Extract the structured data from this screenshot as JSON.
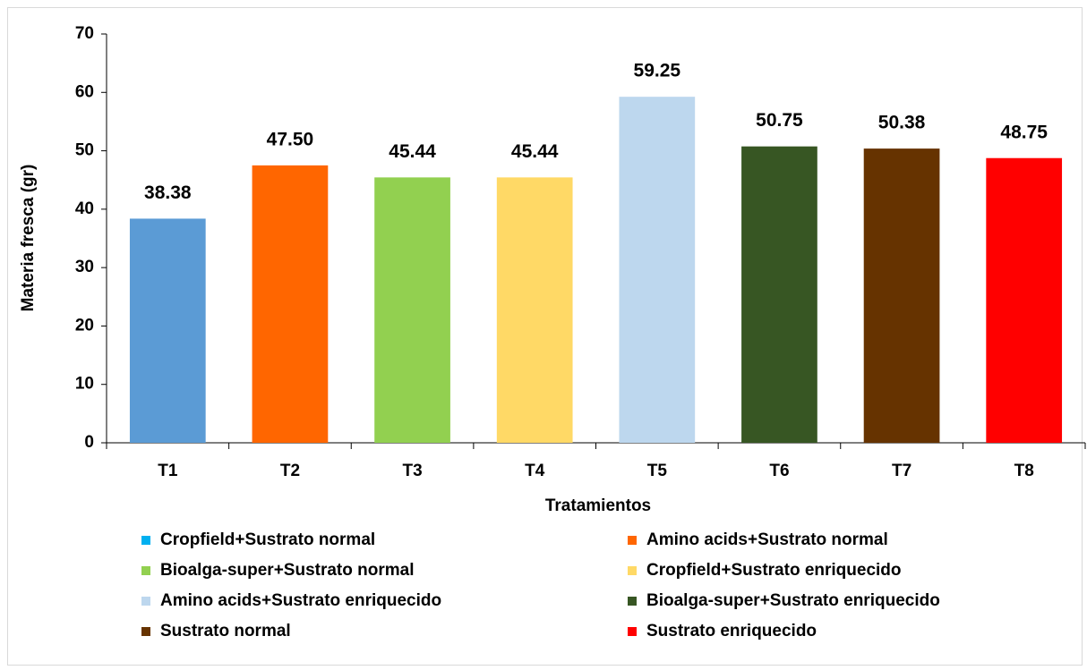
{
  "chart_data": {
    "type": "bar",
    "x_label": "Tratamientos",
    "y_label": "Materia fresca (gr)",
    "categories": [
      "T1",
      "T2",
      "T3",
      "T4",
      "T5",
      "T6",
      "T7",
      "T8"
    ],
    "values": [
      38.38,
      47.5,
      45.44,
      45.44,
      59.25,
      50.75,
      50.38,
      48.75
    ],
    "value_labels": [
      "38.38",
      "47.50",
      "45.44",
      "45.44",
      "59.25",
      "50.75",
      "50.38",
      "48.75"
    ],
    "colors": [
      "#5b9bd5",
      "#ff6600",
      "#92d050",
      "#ffd966",
      "#bdd7ee",
      "#375623",
      "#663300",
      "#ff0000"
    ],
    "ylim": [
      0,
      70
    ],
    "yticks": [
      0,
      10,
      20,
      30,
      40,
      50,
      60,
      70
    ],
    "grid": false,
    "legend": [
      {
        "name": "Cropfield+Sustrato normal",
        "color": "#00b0f0"
      },
      {
        "name": "Amino acids+Sustrato normal",
        "color": "#ff6600"
      },
      {
        "name": "Bioalga-super+Sustrato normal",
        "color": "#92d050"
      },
      {
        "name": "Cropfield+Sustrato enriquecido",
        "color": "#ffd966"
      },
      {
        "name": "Amino acids+Sustrato enriquecido",
        "color": "#bdd7ee"
      },
      {
        "name": "Bioalga-super+Sustrato enriquecido",
        "color": "#375623"
      },
      {
        "name": "Sustrato normal",
        "color": "#663300"
      },
      {
        "name": "Sustrato enriquecido",
        "color": "#ff0000"
      }
    ]
  }
}
